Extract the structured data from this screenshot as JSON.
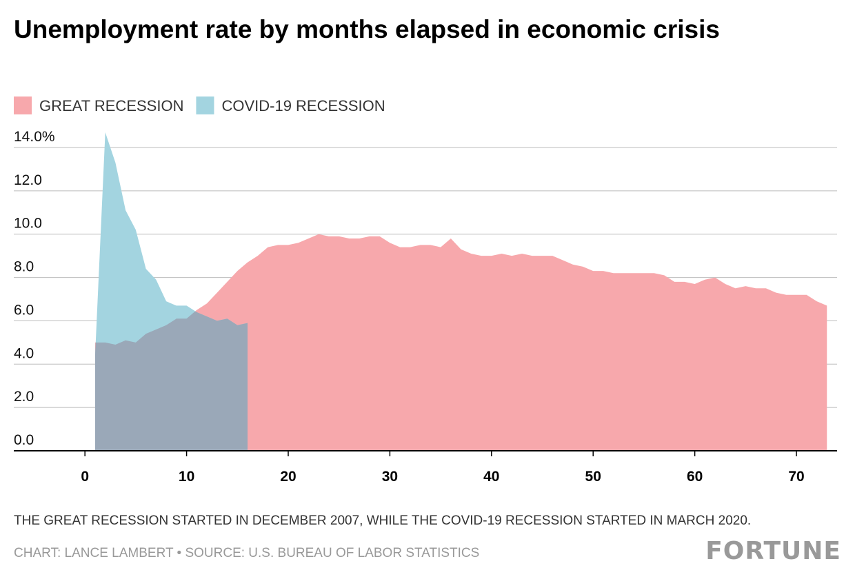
{
  "chart_data": {
    "type": "area",
    "title": "Unemployment rate by months elapsed in economic crisis",
    "series": [
      {
        "name": "GREAT RECESSION",
        "color": "#f7a8ac",
        "x": [
          1,
          2,
          3,
          4,
          5,
          6,
          7,
          8,
          9,
          10,
          11,
          12,
          13,
          14,
          15,
          16,
          17,
          18,
          19,
          20,
          21,
          22,
          23,
          24,
          25,
          26,
          27,
          28,
          29,
          30,
          31,
          32,
          33,
          34,
          35,
          36,
          37,
          38,
          39,
          40,
          41,
          42,
          43,
          44,
          45,
          46,
          47,
          48,
          49,
          50,
          51,
          52,
          53,
          54,
          55,
          56,
          57,
          58,
          59,
          60,
          61,
          62,
          63,
          64,
          65,
          66,
          67,
          68,
          69,
          70,
          71,
          72,
          73
        ],
        "values": [
          5.0,
          5.0,
          4.9,
          5.1,
          5.0,
          5.4,
          5.6,
          5.8,
          6.1,
          6.1,
          6.5,
          6.8,
          7.3,
          7.8,
          8.3,
          8.7,
          9.0,
          9.4,
          9.5,
          9.5,
          9.6,
          9.8,
          10.0,
          9.9,
          9.9,
          9.8,
          9.8,
          9.9,
          9.9,
          9.6,
          9.4,
          9.4,
          9.5,
          9.5,
          9.4,
          9.8,
          9.3,
          9.1,
          9.0,
          9.0,
          9.1,
          9.0,
          9.1,
          9.0,
          9.0,
          9.0,
          8.8,
          8.6,
          8.5,
          8.3,
          8.3,
          8.2,
          8.2,
          8.2,
          8.2,
          8.2,
          8.1,
          7.8,
          7.8,
          7.7,
          7.9,
          8.0,
          7.7,
          7.5,
          7.6,
          7.5,
          7.5,
          7.3,
          7.2,
          7.2,
          7.2,
          6.9,
          6.7
        ]
      },
      {
        "name": "COVID-19 RECESSION",
        "color": "#a3d4e0",
        "x": [
          1,
          2,
          3,
          4,
          5,
          6,
          7,
          8,
          9,
          10,
          11,
          12,
          13,
          14,
          15,
          16
        ],
        "values": [
          4.4,
          14.7,
          13.3,
          11.1,
          10.2,
          8.4,
          7.9,
          6.9,
          6.7,
          6.7,
          6.4,
          6.2,
          6.0,
          6.1,
          5.8,
          5.9
        ]
      }
    ],
    "overlap_color": "#9aa8b8",
    "xlim": [
      -7,
      74
    ],
    "xticks": [
      0,
      10,
      20,
      30,
      40,
      50,
      60,
      70
    ],
    "ylim": [
      0,
      14
    ],
    "yticks": [
      {
        "value": 0,
        "label": "0.0"
      },
      {
        "value": 2,
        "label": "2.0"
      },
      {
        "value": 4,
        "label": "4.0"
      },
      {
        "value": 6,
        "label": "6.0"
      },
      {
        "value": 8,
        "label": "8.0"
      },
      {
        "value": 10,
        "label": "10.0"
      },
      {
        "value": 12,
        "label": "12.0"
      },
      {
        "value": 14,
        "label": "14.0%"
      }
    ],
    "grid": true,
    "note": "THE GREAT RECESSION STARTED IN DECEMBER 2007, WHILE THE COVID-19 RECESSION STARTED IN MARCH 2020.",
    "source": "CHART: LANCE LAMBERT • SOURCE: U.S. BUREAU OF LABOR STATISTICS",
    "brand": "FORTUNE"
  }
}
